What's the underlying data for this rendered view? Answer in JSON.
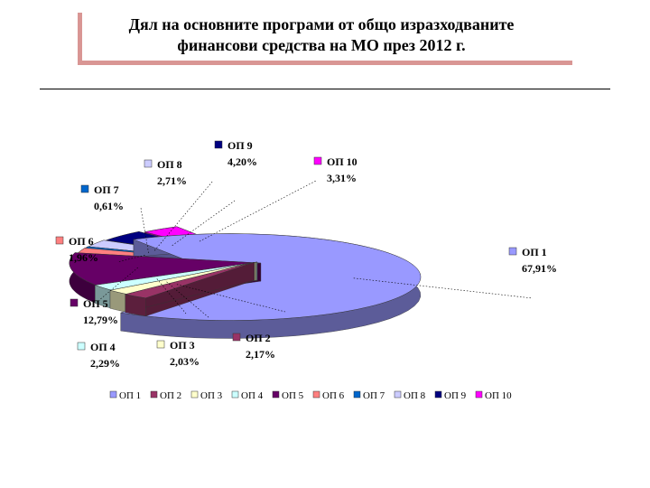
{
  "slide": {
    "title_line1": "Дял на основните програми от общо изразходваните",
    "title_line2": "финансови средства на МО през 2012 г."
  },
  "chart_data": {
    "type": "pie",
    "title": "",
    "legend_position": "bottom",
    "pie_style": "3d-exploded",
    "series": [
      {
        "name": "ОП 1",
        "label": "67,91%",
        "value": 67.91,
        "color": "#9999ff"
      },
      {
        "name": "ОП 2",
        "label": "2,17%",
        "value": 2.17,
        "color": "#993366"
      },
      {
        "name": "ОП 3",
        "label": "2,03%",
        "value": 2.03,
        "color": "#ffffcc"
      },
      {
        "name": "ОП 4",
        "label": "2,29%",
        "value": 2.29,
        "color": "#ccffff"
      },
      {
        "name": "ОП 5",
        "label": "12,79%",
        "value": 12.79,
        "color": "#660066"
      },
      {
        "name": "ОП 6",
        "label": "1,96%",
        "value": 1.96,
        "color": "#ff8080"
      },
      {
        "name": "ОП 7",
        "label": "0,61%",
        "value": 0.61,
        "color": "#0066cc"
      },
      {
        "name": "ОП 8",
        "label": "2,71%",
        "value": 2.71,
        "color": "#ccccff"
      },
      {
        "name": "ОП 9",
        "label": "4,20%",
        "value": 4.2,
        "color": "#000080"
      },
      {
        "name": "ОП 10",
        "label": "3,31%",
        "value": 3.31,
        "color": "#ff00ff"
      }
    ]
  }
}
